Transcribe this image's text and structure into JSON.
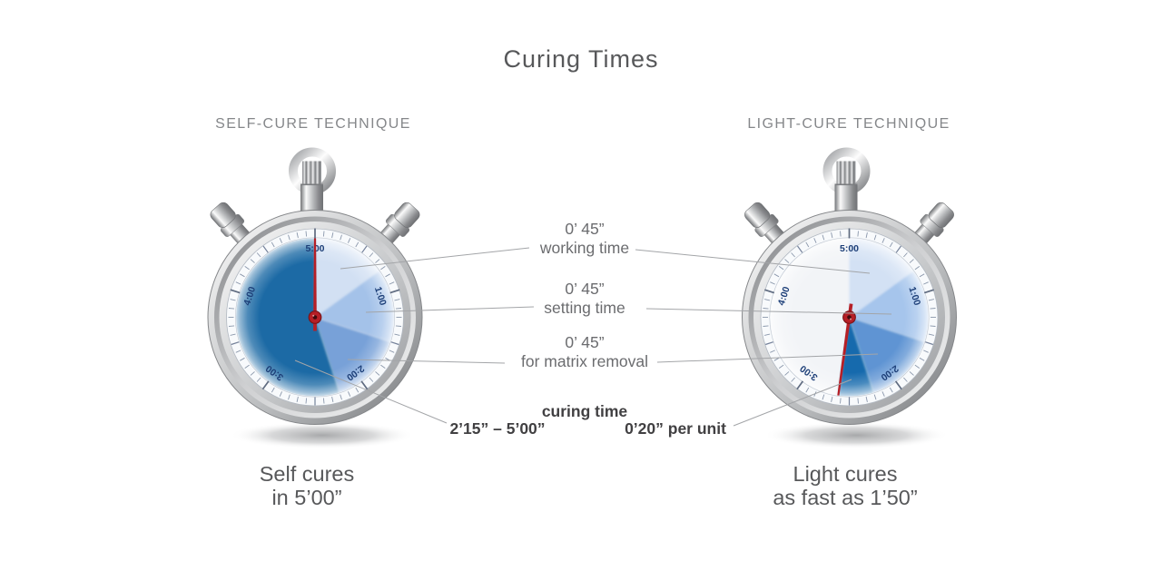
{
  "title": "Curing Times",
  "left_panel": {
    "technique_label": "SELF-CURE TECHNIQUE",
    "caption": {
      "line1": "Self cures",
      "line2": "in 5’00”"
    },
    "watch": {
      "dial_total": "5:00",
      "dial_tick_labels": [
        {
          "text": "5:00",
          "angle": 0
        },
        {
          "text": "1:00",
          "angle": 72
        },
        {
          "text": "2:00",
          "angle": 144
        },
        {
          "text": "3:00",
          "angle": 216
        },
        {
          "text": "4:00",
          "angle": 288
        }
      ],
      "dial_label_color": "#1d3f78",
      "face_color": "#eff2f6",
      "needle_angle_deg": 360,
      "needle_color": "#b61f26",
      "sectors": [
        {
          "name": "working time",
          "time": "0’ 45”",
          "from_deg": 0,
          "to_deg": 54,
          "color": "#d2e0f3"
        },
        {
          "name": "setting time",
          "time": "0’ 45”",
          "from_deg": 54,
          "to_deg": 108,
          "color": "#a4c2e9"
        },
        {
          "name": "for matrix removal",
          "time": "0’ 45”",
          "from_deg": 108,
          "to_deg": 162,
          "color": "#78a1d8"
        },
        {
          "name": "curing time",
          "time": "2’15” – 5’00”",
          "from_deg": 162,
          "to_deg": 360,
          "color": "#1d6aa5"
        }
      ]
    }
  },
  "right_panel": {
    "technique_label": "LIGHT-CURE TECHNIQUE",
    "caption": {
      "line1": "Light cures",
      "line2": "as fast as 1’50”"
    },
    "watch": {
      "dial_total": "5:00",
      "dial_tick_labels": [
        {
          "text": "5:00",
          "angle": 0
        },
        {
          "text": "1:00",
          "angle": 72
        },
        {
          "text": "2:00",
          "angle": 144
        },
        {
          "text": "3:00",
          "angle": 216
        },
        {
          "text": "4:00",
          "angle": 288
        }
      ],
      "dial_label_color": "#1d3f78",
      "face_color": "#f2f4f7",
      "needle_angle_deg": 188,
      "needle_color": "#b61f26",
      "sectors": [
        {
          "name": "working time",
          "time": "0’ 45”",
          "from_deg": 0,
          "to_deg": 54,
          "color": "#d3e1f4"
        },
        {
          "name": "setting time",
          "time": "0’ 45”",
          "from_deg": 54,
          "to_deg": 108,
          "color": "#a6c5ec"
        },
        {
          "name": "for matrix removal",
          "time": "0’ 45”",
          "from_deg": 108,
          "to_deg": 162,
          "color": "#5e94d3"
        },
        {
          "name": "curing time",
          "time": "0’20” per unit",
          "from_deg": 162,
          "to_deg": 188,
          "color": "#176badd"
        }
      ]
    }
  },
  "annotations": [
    {
      "value": "0’ 45”",
      "label": "working time"
    },
    {
      "value": "0’ 45”",
      "label": "setting time"
    },
    {
      "value": "0’ 45”",
      "label": "for matrix removal"
    }
  ],
  "curing_annotation": {
    "title": "curing time",
    "self_value": "2’15” – 5’00”",
    "light_value": "0’20” per unit"
  }
}
